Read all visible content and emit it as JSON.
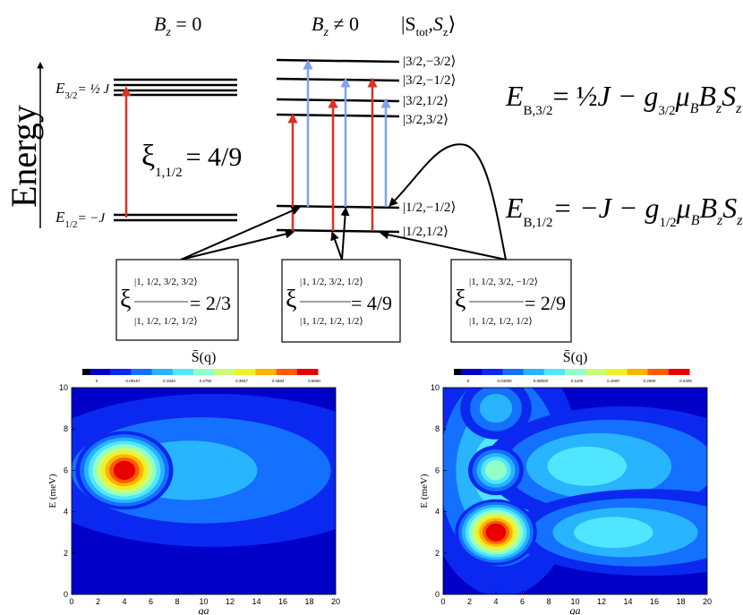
{
  "diagram": {
    "energy_axis_label": "Energy",
    "col_bz0": "B",
    "col_bz0_sub": "z",
    "col_bz0_rel": " = 0",
    "col_bzne": "B",
    "col_bzne_sub": "z",
    "col_bzne_rel": " ≠ 0",
    "col_state": "|S",
    "col_state_sub": "tot",
    "col_state_rest": ",S",
    "col_state_sub2": "z",
    "col_state_close": "⟩",
    "e32_label": "E",
    "e32_sub": "3/2",
    "e32_value": "= ½ J",
    "e12_label": "E",
    "e12_sub": "1/2",
    "e12_value": "= −J",
    "xi_main": "ξ",
    "xi_main_sub": "1,1/2",
    "xi_main_value": "= 4/9",
    "states": [
      "|3/2,−3/2⟩",
      "|3/2,−1/2⟩",
      "|3/2,1/2⟩",
      "|3/2,3/2⟩",
      "|1/2,−1/2⟩",
      "|1/2,1/2⟩"
    ],
    "formula_top": "E_B,3/2 = ½J − g_3/2 μ_B B_z S_z",
    "formula_top_parts": {
      "E": "E",
      "sub": "B,3/2",
      "rhs1": "= ",
      "half": "½",
      "rhs2": "J − g",
      "gsub": "3/2",
      "rhs3": "μ",
      "musub": "B",
      "rhs4": "B",
      "bsub": "z",
      "rhs5": "S",
      "ssub": "z"
    },
    "formula_bot_parts": {
      "E": "E",
      "sub": "B,1/2",
      "rhs1": "= −J − g",
      "gsub": "1/2",
      "rhs3": "μ",
      "musub": "B",
      "rhs4": "B",
      "bsub": "z",
      "rhs5": "S",
      "ssub": "z"
    },
    "boxes": [
      {
        "top": "|1, 1/2, 3/2, 3/2⟩",
        "bot": "|1, 1/2, 1/2, 1/2⟩",
        "value": "= 2/3"
      },
      {
        "top": "|1, 1/2, 3/2, 1/2⟩",
        "bot": "|1, 1/2, 1/2, 1/2⟩",
        "value": "= 4/9"
      },
      {
        "top": "|1, 1/2, 3/2, −1/2⟩",
        "bot": "|1, 1/2, 1/2, 1/2⟩",
        "value": "= 2/9"
      }
    ],
    "arrow_color_red": "#e0301e",
    "arrow_color_blue": "#7fa3f0"
  },
  "chart_data": [
    {
      "type": "heatmap",
      "title": "S̄(q)",
      "xlabel": "qa",
      "ylabel": "E (meV)",
      "xlim": [
        0,
        20
      ],
      "ylim": [
        0,
        10
      ],
      "xticks": [
        0,
        2,
        4,
        6,
        8,
        10,
        12,
        14,
        16,
        18,
        20
      ],
      "yticks": [
        0,
        2,
        4,
        6,
        8,
        10
      ],
      "colorbar_ticks": [
        "0",
        "0.09167",
        "0.1833",
        "0.2750",
        "0.3667",
        "0.4583",
        "0.5500"
      ],
      "colorbar_range": [
        0,
        0.55
      ],
      "peaks": [
        {
          "qa": 4,
          "E": 6,
          "value": 0.55
        }
      ]
    },
    {
      "type": "heatmap",
      "title": "S̄(q)",
      "xlabel": "qa",
      "ylabel": "E (meV)",
      "xlim": [
        0,
        20
      ],
      "ylim": [
        0,
        10
      ],
      "xticks": [
        0,
        2,
        4,
        6,
        8,
        10,
        12,
        14,
        16,
        18,
        20
      ],
      "yticks": [
        0,
        2,
        4,
        6,
        8,
        10
      ],
      "colorbar_ticks": [
        "0",
        "0.04000",
        "0.08000",
        "0.1200",
        "0.1600",
        "0.2000",
        "0.2400"
      ],
      "colorbar_range": [
        0,
        0.24
      ],
      "peaks": [
        {
          "qa": 4,
          "E": 3,
          "value": 0.24
        },
        {
          "qa": 4,
          "E": 6,
          "value": 0.12
        },
        {
          "qa": 4,
          "E": 9,
          "value": 0.08
        }
      ]
    }
  ],
  "colors": {
    "cmap": [
      "#0000c8",
      "#0a28f0",
      "#1470ff",
      "#28b4ff",
      "#50e6ff",
      "#90ffc8",
      "#c8ff78",
      "#f0f028",
      "#ffb400",
      "#ff5a00",
      "#e60000"
    ]
  }
}
